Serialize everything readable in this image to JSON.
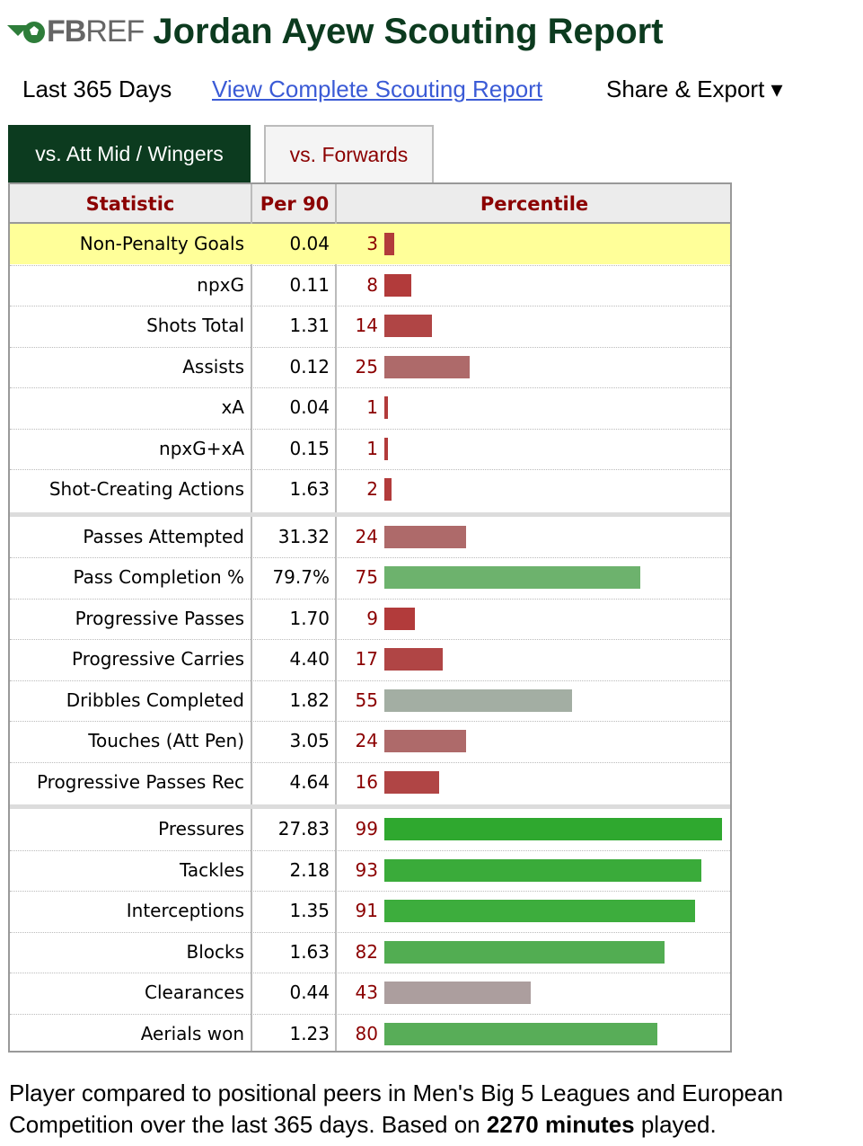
{
  "header": {
    "logo_text_bold": "FB",
    "logo_text": "REF",
    "title": "Jordan Ayew Scouting Report"
  },
  "subnav": {
    "period": "Last 365 Days",
    "full_report_link": "View Complete Scouting Report",
    "share_export": "Share & Export ▾"
  },
  "tabs": [
    {
      "label": "vs. Att Mid / Wingers",
      "active": true
    },
    {
      "label": "vs. Forwards",
      "active": false
    }
  ],
  "table": {
    "headers": {
      "statistic": "Statistic",
      "per90": "Per 90",
      "percentile": "Percentile"
    },
    "groups": [
      [
        {
          "stat": "Non-Penalty Goals",
          "per90": "0.04",
          "percentile": 3,
          "highlight": true,
          "color": "#b23b3b"
        },
        {
          "stat": "npxG",
          "per90": "0.11",
          "percentile": 8,
          "color": "#b23b3b"
        },
        {
          "stat": "Shots Total",
          "per90": "1.31",
          "percentile": 14,
          "color": "#b04545"
        },
        {
          "stat": "Assists",
          "per90": "0.12",
          "percentile": 25,
          "color": "#ae6a6a"
        },
        {
          "stat": "xA",
          "per90": "0.04",
          "percentile": 1,
          "color": "#b23b3b"
        },
        {
          "stat": "npxG+xA",
          "per90": "0.15",
          "percentile": 1,
          "color": "#b23b3b"
        },
        {
          "stat": "Shot-Creating Actions",
          "per90": "1.63",
          "percentile": 2,
          "color": "#b23b3b"
        }
      ],
      [
        {
          "stat": "Passes Attempted",
          "per90": "31.32",
          "percentile": 24,
          "color": "#ae6a6a"
        },
        {
          "stat": "Pass Completion %",
          "per90": "79.7%",
          "percentile": 75,
          "color": "#6db26d"
        },
        {
          "stat": "Progressive Passes",
          "per90": "1.70",
          "percentile": 9,
          "color": "#b23b3b"
        },
        {
          "stat": "Progressive Carries",
          "per90": "4.40",
          "percentile": 17,
          "color": "#b04545"
        },
        {
          "stat": "Dribbles Completed",
          "per90": "1.82",
          "percentile": 55,
          "color": "#a3aea3"
        },
        {
          "stat": "Touches (Att Pen)",
          "per90": "3.05",
          "percentile": 24,
          "color": "#ae6a6a"
        },
        {
          "stat": "Progressive Passes Rec",
          "per90": "4.64",
          "percentile": 16,
          "color": "#b04545"
        }
      ],
      [
        {
          "stat": "Pressures",
          "per90": "27.83",
          "percentile": 99,
          "color": "#2fa82f"
        },
        {
          "stat": "Tackles",
          "per90": "2.18",
          "percentile": 93,
          "color": "#3aab3a"
        },
        {
          "stat": "Interceptions",
          "per90": "1.35",
          "percentile": 91,
          "color": "#3dad3d"
        },
        {
          "stat": "Blocks",
          "per90": "1.63",
          "percentile": 82,
          "color": "#52ad52"
        },
        {
          "stat": "Clearances",
          "per90": "0.44",
          "percentile": 43,
          "color": "#ac9e9e"
        },
        {
          "stat": "Aerials won",
          "per90": "1.23",
          "percentile": 80,
          "color": "#58ad58"
        }
      ]
    ]
  },
  "footer": {
    "text_before": "Player compared to positional peers in Men's Big 5 Leagues and European Competition over the last 365 days. Based on ",
    "minutes": "2270 minutes",
    "text_after": " played."
  }
}
